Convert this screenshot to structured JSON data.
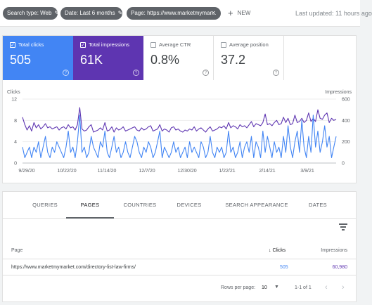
{
  "filters": [
    {
      "label": "Search type: Web"
    },
    {
      "label": "Date: Last 6 months"
    },
    {
      "label": "Page: https://www.marketmymar..."
    }
  ],
  "new_label": "NEW",
  "last_updated": "Last updated: 11 hours ago",
  "metrics": [
    {
      "label": "Total clicks",
      "value": "505",
      "checked": true
    },
    {
      "label": "Total impressions",
      "value": "61K",
      "checked": true
    },
    {
      "label": "Average CTR",
      "value": "0.8%",
      "checked": false
    },
    {
      "label": "Average position",
      "value": "37.2",
      "checked": false
    }
  ],
  "colors": {
    "clicks": "#4285f4",
    "impressions": "#5e35b1"
  },
  "chart_data": {
    "type": "line",
    "ylabel_left": "Clicks",
    "ylabel_right": "Impressions",
    "left_ticks": [
      "12",
      "8",
      "4",
      "0"
    ],
    "right_ticks": [
      "600",
      "400",
      "200",
      "0"
    ],
    "ylim_left": [
      0,
      12
    ],
    "ylim_right": [
      0,
      600
    ],
    "x_ticks": [
      "9/29/20",
      "10/22/20",
      "11/14/20",
      "12/7/20",
      "12/30/20",
      "1/22/21",
      "2/14/21",
      "3/9/21"
    ],
    "series": [
      {
        "name": "Clicks",
        "axis": "left",
        "values": [
          3,
          1,
          2,
          3,
          1,
          3,
          2,
          4,
          1,
          3,
          5,
          2,
          1,
          3,
          2,
          4,
          3,
          2,
          1,
          3,
          6,
          2,
          3,
          1,
          4,
          9,
          2,
          3,
          1,
          2,
          5,
          3,
          2,
          1,
          4,
          3,
          6,
          2,
          1,
          3,
          5,
          2,
          3,
          1,
          2,
          4,
          2,
          1,
          3,
          5,
          4,
          2,
          1,
          3,
          2,
          4,
          3,
          1,
          2,
          4,
          6,
          1,
          3,
          2,
          1,
          2,
          4,
          2,
          3,
          1,
          2,
          3,
          1,
          4,
          2,
          3,
          2,
          1,
          4,
          3,
          1,
          2,
          5,
          2,
          1,
          3,
          2,
          3,
          1,
          2,
          6,
          2,
          3,
          1,
          2,
          4,
          1,
          3,
          4,
          2,
          5,
          1,
          4,
          3,
          1,
          6,
          2,
          5,
          3,
          1,
          4,
          2,
          3,
          1,
          5,
          2,
          7,
          3,
          1,
          4,
          6,
          2,
          8,
          3,
          1,
          5,
          2,
          9,
          3,
          6,
          2,
          4,
          7,
          3,
          5,
          1,
          3,
          5
        ]
      },
      {
        "name": "Impressions",
        "axis": "right",
        "values": [
          430,
          360,
          310,
          350,
          300,
          380,
          330,
          360,
          320,
          340,
          370,
          330,
          340,
          320,
          330,
          340,
          310,
          330,
          340,
          320,
          360,
          330,
          340,
          310,
          360,
          520,
          320,
          300,
          310,
          340,
          360,
          290,
          300,
          310,
          330,
          310,
          380,
          300,
          310,
          340,
          290,
          330,
          310,
          320,
          340,
          300,
          310,
          320,
          330,
          340,
          310,
          300,
          330,
          310,
          320,
          340,
          350,
          300,
          310,
          320,
          360,
          300,
          320,
          310,
          290,
          330,
          340,
          310,
          320,
          300,
          290,
          310,
          300,
          320,
          310,
          340,
          300,
          320,
          330,
          310,
          290,
          320,
          340,
          300,
          310,
          320,
          340,
          330,
          350,
          320,
          380,
          330,
          350,
          340,
          320,
          360,
          340,
          350,
          330,
          360,
          390,
          340,
          370,
          360,
          350,
          380,
          460,
          360,
          370,
          350,
          380,
          400,
          360,
          370,
          430,
          380,
          420,
          360,
          370,
          450,
          380,
          390,
          420,
          380,
          400,
          470,
          390,
          420,
          390,
          500,
          420,
          410,
          450,
          470,
          380,
          420,
          400,
          410
        ]
      }
    ]
  },
  "tabs": [
    "QUERIES",
    "PAGES",
    "COUNTRIES",
    "DEVICES",
    "SEARCH APPEARANCE",
    "DATES"
  ],
  "active_tab": "PAGES",
  "table": {
    "headers": {
      "page": "Page",
      "clicks": "Clicks",
      "impressions": "Impressions"
    },
    "rows": [
      {
        "page": "https://www.marketmymarket.com/directory-list-law-firms/",
        "clicks": "505",
        "impressions": "60,980"
      }
    ]
  },
  "pagination": {
    "rows_per_page_label": "Rows per page:",
    "rows_per_page": "10",
    "range": "1-1 of 1"
  }
}
